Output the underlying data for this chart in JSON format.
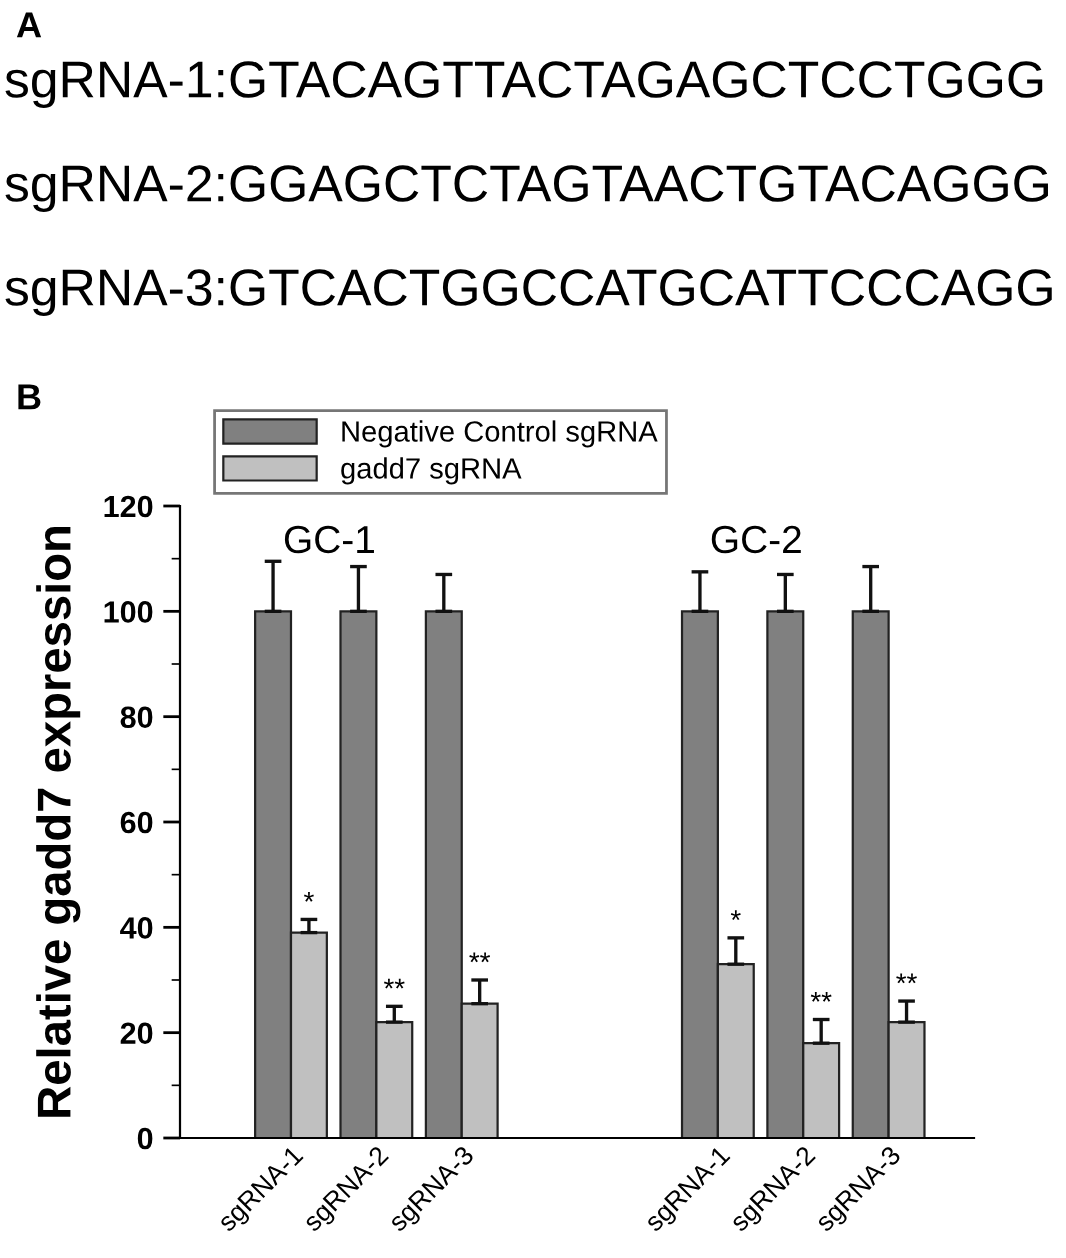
{
  "chart_data": {
    "type": "bar",
    "categories": [
      "sgRNA-1",
      "sgRNA-2",
      "sgRNA-3",
      "sgRNA-1",
      "sgRNA-2",
      "sgRNA-3"
    ],
    "series": [
      {
        "name": "Negative Control sgRNA",
        "color": "#808080",
        "values": [
          100,
          100,
          100,
          100,
          100,
          100
        ],
        "errors": [
          9.5,
          8.5,
          7,
          7.5,
          7,
          8.5
        ]
      },
      {
        "name": "gadd7 sgRNA",
        "color": "#c0c0c0",
        "values": [
          39,
          22,
          25.5,
          33,
          18,
          22
        ],
        "errors": [
          2.5,
          3,
          4.5,
          5,
          4.5,
          4
        ]
      }
    ],
    "ylabel": "Relative gadd7 expression",
    "ylim": [
      0,
      120
    ],
    "yticks": [
      0,
      20,
      40,
      60,
      80,
      100,
      120
    ],
    "annotations": [
      "A",
      "sgRNA-1:GTACAGTTACTAGAGCTCCTGGG",
      "sgRNA-2:GGAGCTCTAGTAACTGTACAGGG",
      "sgRNA-3:GTCACTGGCCATGCATTCCCAGG",
      "B",
      "GC-1",
      "GC-2",
      "*",
      "**",
      "**",
      "*",
      "**",
      "**"
    ],
    "legend": "top",
    "grid": false
  }
}
